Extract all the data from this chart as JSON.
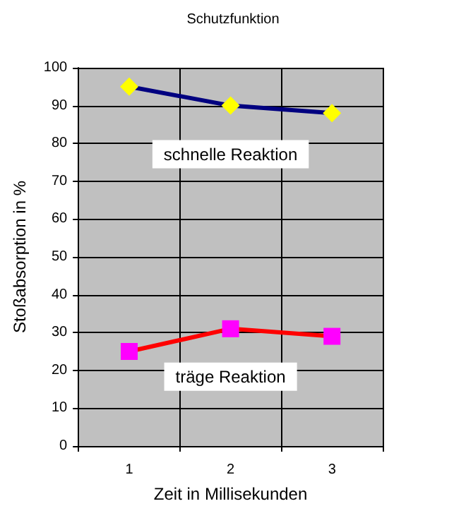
{
  "chart_data": {
    "type": "line",
    "title": "Schutzfunktion",
    "xlabel": "Zeit in Millisekunden",
    "ylabel": "Stoßabsorption in %",
    "categories": [
      "1",
      "2",
      "3"
    ],
    "series": [
      {
        "name": "schnelle Reaktion",
        "color": "#000080",
        "colors": [
          "#ffff00",
          "#ffff00",
          "#ffff00"
        ],
        "marker": "diamond",
        "values": [
          95,
          90,
          88
        ]
      },
      {
        "name": "träge Reaktion",
        "color": "#ff0000",
        "colors": [
          "#ff00ff",
          "#ff00ff",
          "#ff00ff"
        ],
        "marker": "square",
        "values": [
          25,
          31,
          29
        ]
      }
    ],
    "ylim": [
      0,
      100
    ],
    "yticks": [
      0,
      10,
      20,
      30,
      40,
      50,
      60,
      70,
      80,
      90,
      100
    ],
    "grid": true,
    "legend": false,
    "line_style": "solid"
  }
}
